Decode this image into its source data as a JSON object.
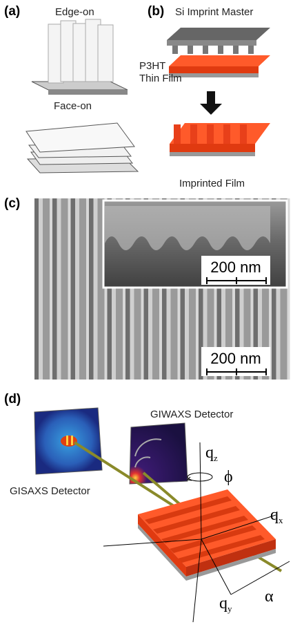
{
  "panel_a": {
    "label": "(a)",
    "edge_on": "Edge-on",
    "face_on": "Face-on"
  },
  "panel_b": {
    "label": "(b)",
    "master": "Si Imprint Master",
    "film_line1": "P3HT",
    "film_line2": "Thin Film",
    "imprinted": "Imprinted Film"
  },
  "panel_c": {
    "label": "(c)",
    "inset_scale": "200 nm",
    "main_scale": "200 nm"
  },
  "panel_d": {
    "label": "(d)",
    "giwaxs": "GIWAXS Detector",
    "gisaxs": "GISAXS Detector",
    "qz": {
      "base": "q",
      "sub": "z"
    },
    "qx": {
      "base": "q",
      "sub": "x"
    },
    "qy": {
      "base": "q",
      "sub": "y"
    },
    "phi": "ϕ",
    "alpha": "α"
  }
}
